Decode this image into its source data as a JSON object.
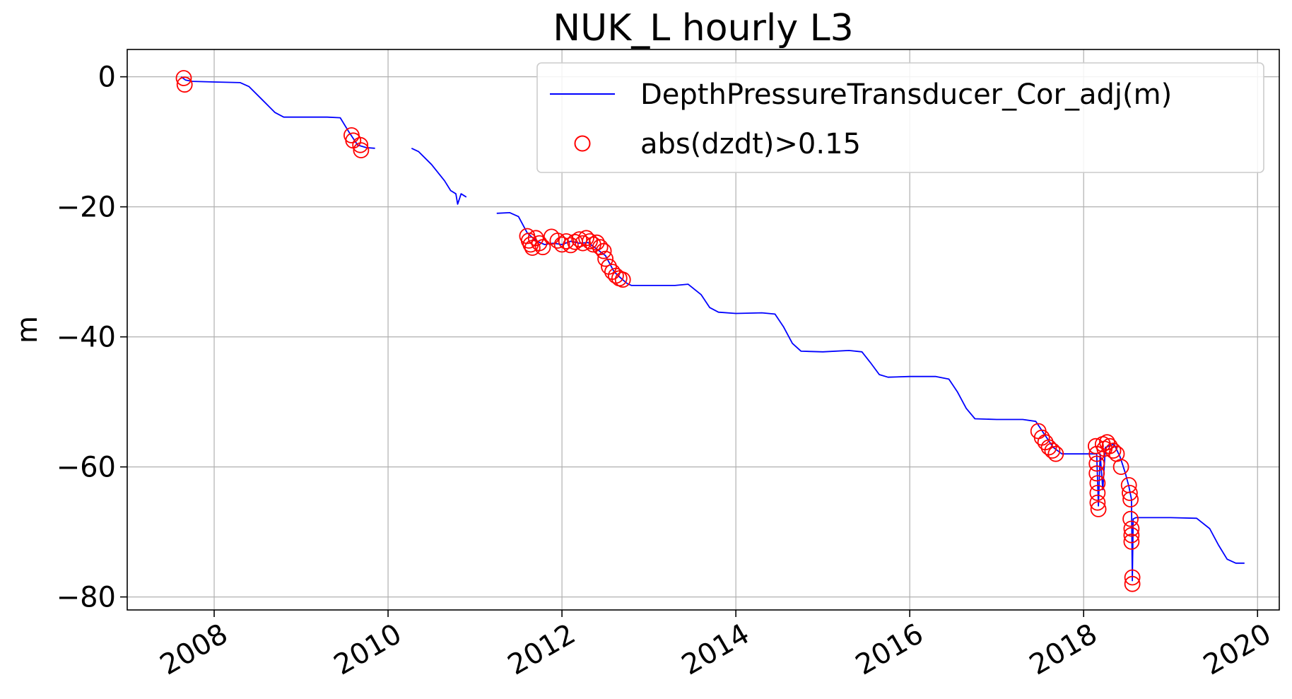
{
  "chart_data": {
    "type": "line",
    "title": "NUK_L hourly L3",
    "xlabel": "",
    "ylabel": "m",
    "xlim": [
      2007.0,
      2020.25
    ],
    "ylim": [
      -82,
      4.2
    ],
    "x_ticks": [
      2008,
      2010,
      2012,
      2014,
      2016,
      2018,
      2020
    ],
    "x_tick_labels": [
      "2008",
      "2010",
      "2012",
      "2014",
      "2016",
      "2018",
      "2020"
    ],
    "y_ticks": [
      0,
      -20,
      -40,
      -60,
      -80
    ],
    "y_tick_labels": [
      "0",
      "−20",
      "−40",
      "−60",
      "−80"
    ],
    "grid": true,
    "legend_position": "top-right",
    "colors": {
      "line": "#0000ff",
      "markers": "#ff0000"
    },
    "series": [
      {
        "name": "DepthPressureTransducer_Cor_adj(m)",
        "kind": "line",
        "segments": [
          [
            [
              2007.62,
              0
            ],
            [
              2007.67,
              -0.5
            ],
            [
              2007.75,
              -0.7
            ],
            [
              2008.0,
              -0.8
            ],
            [
              2008.3,
              -0.9
            ],
            [
              2008.4,
              -1.5
            ],
            [
              2008.55,
              -3.5
            ],
            [
              2008.7,
              -5.5
            ],
            [
              2008.8,
              -6.2
            ],
            [
              2009.0,
              -6.2
            ],
            [
              2009.3,
              -6.2
            ],
            [
              2009.45,
              -6.3
            ],
            [
              2009.55,
              -8.5
            ],
            [
              2009.65,
              -10.5
            ],
            [
              2009.75,
              -10.9
            ],
            [
              2009.85,
              -11.0
            ]
          ],
          [
            [
              2010.27,
              -11.0
            ],
            [
              2010.35,
              -11.5
            ],
            [
              2010.5,
              -13.5
            ],
            [
              2010.65,
              -16.0
            ],
            [
              2010.72,
              -17.5
            ],
            [
              2010.78,
              -18.0
            ],
            [
              2010.8,
              -19.6
            ],
            [
              2010.84,
              -18.0
            ],
            [
              2010.9,
              -18.5
            ]
          ],
          [
            [
              2011.25,
              -21.0
            ],
            [
              2011.4,
              -20.9
            ],
            [
              2011.5,
              -21.5
            ],
            [
              2011.6,
              -24.0
            ],
            [
              2011.7,
              -25.2
            ],
            [
              2011.8,
              -25.8
            ],
            [
              2011.9,
              -25.6
            ],
            [
              2012.0,
              -25.8
            ],
            [
              2012.1,
              -25.3
            ],
            [
              2012.2,
              -25.6
            ],
            [
              2012.3,
              -25.5
            ],
            [
              2012.4,
              -26.5
            ],
            [
              2012.5,
              -27.5
            ],
            [
              2012.6,
              -30.0
            ],
            [
              2012.68,
              -31.0
            ],
            [
              2012.75,
              -31.8
            ],
            [
              2012.8,
              -32.1
            ],
            [
              2013.0,
              -32.1
            ],
            [
              2013.3,
              -32.1
            ],
            [
              2013.45,
              -31.9
            ],
            [
              2013.6,
              -33.5
            ],
            [
              2013.7,
              -35.5
            ],
            [
              2013.8,
              -36.2
            ],
            [
              2014.0,
              -36.4
            ],
            [
              2014.3,
              -36.3
            ],
            [
              2014.45,
              -36.5
            ],
            [
              2014.55,
              -38.5
            ],
            [
              2014.65,
              -41.0
            ],
            [
              2014.75,
              -42.2
            ],
            [
              2015.0,
              -42.3
            ],
            [
              2015.3,
              -42.1
            ],
            [
              2015.45,
              -42.3
            ],
            [
              2015.55,
              -44.0
            ],
            [
              2015.65,
              -45.8
            ],
            [
              2015.75,
              -46.2
            ],
            [
              2016.0,
              -46.1
            ],
            [
              2016.3,
              -46.1
            ],
            [
              2016.45,
              -46.5
            ],
            [
              2016.55,
              -48.5
            ],
            [
              2016.65,
              -51.0
            ],
            [
              2016.75,
              -52.6
            ],
            [
              2017.0,
              -52.7
            ],
            [
              2017.3,
              -52.7
            ],
            [
              2017.45,
              -53.0
            ],
            [
              2017.55,
              -55.0
            ],
            [
              2017.65,
              -57.0
            ],
            [
              2017.75,
              -58.0
            ],
            [
              2018.0,
              -58.0
            ],
            [
              2018.15,
              -58.0
            ],
            [
              2018.17,
              -66.0
            ],
            [
              2018.19,
              -58.0
            ],
            [
              2018.22,
              -63.5
            ],
            [
              2018.25,
              -57.0
            ],
            [
              2018.35,
              -56.5
            ],
            [
              2018.42,
              -58.5
            ],
            [
              2018.48,
              -61.0
            ],
            [
              2018.52,
              -63.0
            ],
            [
              2018.55,
              -65.0
            ],
            [
              2018.56,
              -77.5
            ],
            [
              2018.57,
              -68.0
            ],
            [
              2018.6,
              -67.8
            ],
            [
              2019.0,
              -67.8
            ],
            [
              2019.3,
              -67.9
            ],
            [
              2019.45,
              -69.5
            ],
            [
              2019.55,
              -72.0
            ],
            [
              2019.65,
              -74.2
            ],
            [
              2019.75,
              -74.8
            ],
            [
              2019.85,
              -74.8
            ]
          ]
        ]
      },
      {
        "name": "abs(dzdt)>0.15",
        "kind": "scatter",
        "points": [
          [
            2007.65,
            -0.2
          ],
          [
            2007.66,
            -1.2
          ],
          [
            2009.58,
            -9.0
          ],
          [
            2009.6,
            -9.8
          ],
          [
            2009.68,
            -10.5
          ],
          [
            2009.69,
            -11.3
          ],
          [
            2011.6,
            -24.5
          ],
          [
            2011.62,
            -25.2
          ],
          [
            2011.64,
            -25.8
          ],
          [
            2011.66,
            -26.3
          ],
          [
            2011.7,
            -24.8
          ],
          [
            2011.74,
            -25.6
          ],
          [
            2011.78,
            -26.2
          ],
          [
            2011.88,
            -24.6
          ],
          [
            2011.95,
            -25.2
          ],
          [
            2012.0,
            -25.8
          ],
          [
            2012.05,
            -25.3
          ],
          [
            2012.1,
            -25.9
          ],
          [
            2012.15,
            -25.4
          ],
          [
            2012.2,
            -25.0
          ],
          [
            2012.24,
            -25.6
          ],
          [
            2012.28,
            -24.8
          ],
          [
            2012.32,
            -25.3
          ],
          [
            2012.36,
            -25.8
          ],
          [
            2012.4,
            -25.5
          ],
          [
            2012.44,
            -26.2
          ],
          [
            2012.48,
            -26.8
          ],
          [
            2012.5,
            -28.0
          ],
          [
            2012.54,
            -29.2
          ],
          [
            2012.58,
            -30.0
          ],
          [
            2012.62,
            -30.6
          ],
          [
            2012.66,
            -31.0
          ],
          [
            2012.7,
            -31.2
          ],
          [
            2017.48,
            -54.5
          ],
          [
            2017.52,
            -55.5
          ],
          [
            2017.56,
            -56.2
          ],
          [
            2017.6,
            -57.0
          ],
          [
            2017.64,
            -57.5
          ],
          [
            2017.68,
            -58.0
          ],
          [
            2018.14,
            -56.8
          ],
          [
            2018.15,
            -58.0
          ],
          [
            2018.15,
            -59.5
          ],
          [
            2018.15,
            -61.0
          ],
          [
            2018.16,
            -62.5
          ],
          [
            2018.16,
            -64.0
          ],
          [
            2018.16,
            -65.5
          ],
          [
            2018.17,
            -66.5
          ],
          [
            2018.22,
            -56.5
          ],
          [
            2018.24,
            -57.2
          ],
          [
            2018.27,
            -56.2
          ],
          [
            2018.3,
            -56.8
          ],
          [
            2018.34,
            -57.5
          ],
          [
            2018.38,
            -58.0
          ],
          [
            2018.43,
            -60.0
          ],
          [
            2018.52,
            -62.8
          ],
          [
            2018.53,
            -64.0
          ],
          [
            2018.54,
            -65.0
          ],
          [
            2018.54,
            -68.0
          ],
          [
            2018.55,
            -69.5
          ],
          [
            2018.55,
            -70.5
          ],
          [
            2018.55,
            -71.5
          ],
          [
            2018.56,
            -77.0
          ],
          [
            2018.56,
            -78.0
          ]
        ]
      }
    ]
  }
}
